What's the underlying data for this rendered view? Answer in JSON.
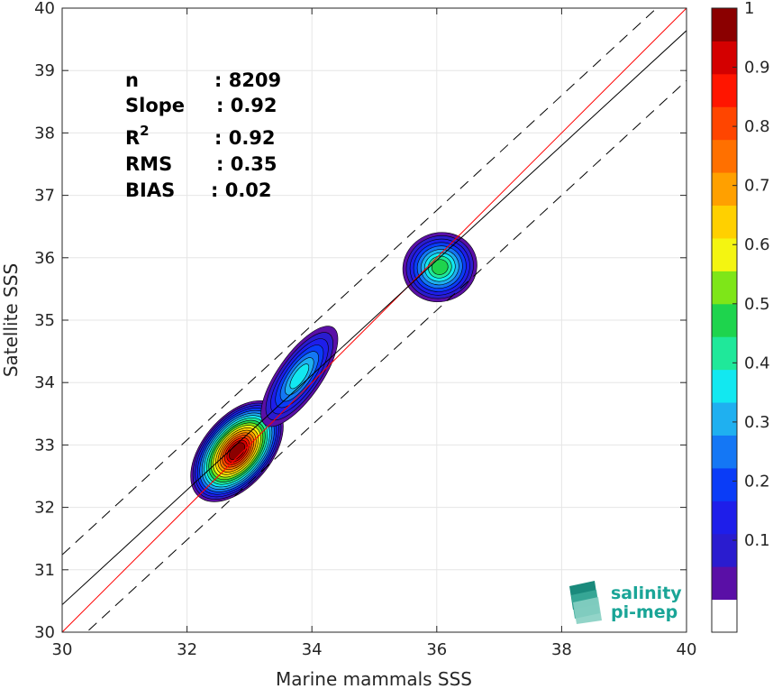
{
  "chart_data": {
    "type": "heatmap",
    "xlabel": "Marine mammals SSS",
    "ylabel": "Satellite SSS",
    "xlim": [
      30,
      40
    ],
    "ylim": [
      30,
      40
    ],
    "x_ticks": [
      "30",
      "32",
      "34",
      "36",
      "38",
      "40"
    ],
    "y_ticks": [
      "30",
      "31",
      "32",
      "33",
      "34",
      "35",
      "36",
      "37",
      "38",
      "39",
      "40"
    ],
    "grid": true,
    "stats": [
      {
        "label": "n",
        "value": ": 8209"
      },
      {
        "label": "Slope",
        "value": ": 0.92"
      },
      {
        "label": "R",
        "sup": "2",
        "value": ": 0.92"
      },
      {
        "label": "RMS",
        "value": ": 0.35"
      },
      {
        "label": "BIAS",
        "value": ": 0.02"
      }
    ],
    "lines": [
      {
        "name": "identity",
        "color": "#ff0000",
        "style": "solid",
        "slope": 1.0,
        "intercept": 0.0
      },
      {
        "name": "fit",
        "color": "#000000",
        "style": "solid",
        "slope": 0.92,
        "intercept": 2.84
      },
      {
        "name": "fit_upper",
        "color": "#000000",
        "style": "dashed",
        "slope": 0.92,
        "intercept": 3.64
      },
      {
        "name": "fit_lower",
        "color": "#000000",
        "style": "dashed",
        "slope": 0.92,
        "intercept": 2.04
      }
    ],
    "density_blobs": [
      {
        "region": "lower",
        "x": 32.8,
        "y": 32.9,
        "peak": 1.0
      },
      {
        "region": "middle",
        "x": 33.8,
        "y": 34.1,
        "peak": 0.4
      },
      {
        "region": "upper",
        "x": 36.05,
        "y": 35.85,
        "peak": 0.5
      }
    ],
    "colorbar": {
      "ticks": [
        "0.1",
        "0.2",
        "0.3",
        "0.4",
        "0.5",
        "0.6",
        "0.7",
        "0.8",
        "0.9",
        "1"
      ],
      "colors": [
        "#ffffff",
        "#5a0fa6",
        "#2a1ccf",
        "#1e1eea",
        "#0a3cf7",
        "#1477f5",
        "#1fb0f0",
        "#12e8f0",
        "#1fe89a",
        "#1ed44d",
        "#7ee618",
        "#f4f511",
        "#ffd000",
        "#ffa000",
        "#ff7000",
        "#ff4500",
        "#ff1500",
        "#d40000",
        "#8b0000"
      ]
    }
  },
  "logo": {
    "line1": "salinity",
    "line2": "pi-mep"
  }
}
